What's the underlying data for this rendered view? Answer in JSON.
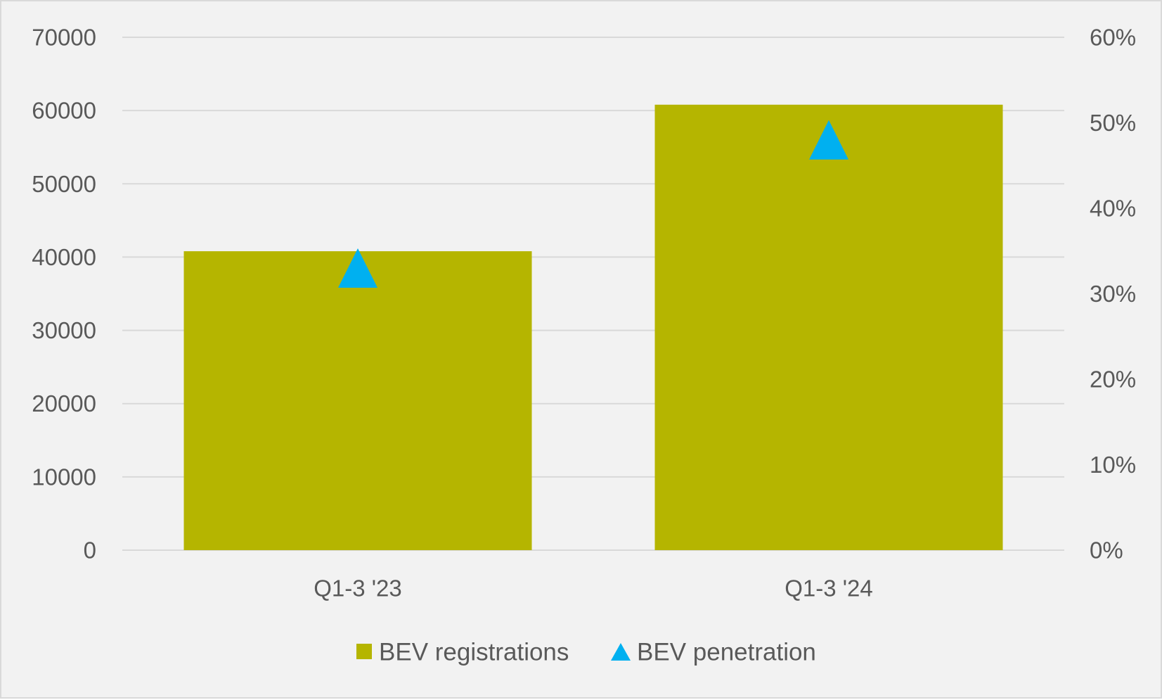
{
  "chart_data": {
    "type": "bar",
    "title": "",
    "xlabel": "",
    "ylabel": "",
    "categories": [
      "Q1-3 '23",
      "Q1-3 '24"
    ],
    "series": [
      {
        "name": "BEV registrations",
        "type": "bar",
        "axis": "left",
        "color": "#b5b500",
        "values": [
          40800,
          60800
        ]
      },
      {
        "name": "BEV penetration",
        "type": "scatter",
        "marker": "triangle",
        "axis": "right",
        "color": "#00b0f0",
        "values": [
          0.33,
          0.48
        ]
      }
    ],
    "y_left": {
      "min": 0,
      "max": 70000,
      "step": 10000,
      "ticks": [
        "0",
        "10000",
        "20000",
        "30000",
        "40000",
        "50000",
        "60000",
        "70000"
      ]
    },
    "y_right": {
      "min": 0,
      "max": 0.6,
      "step": 0.1,
      "ticks": [
        "0%",
        "10%",
        "20%",
        "30%",
        "40%",
        "50%",
        "60%"
      ]
    },
    "grid": true,
    "legend_position": "bottom",
    "colors": {
      "background": "#f2f2f2",
      "gridline": "#d9d9d9",
      "text": "#595959"
    }
  }
}
